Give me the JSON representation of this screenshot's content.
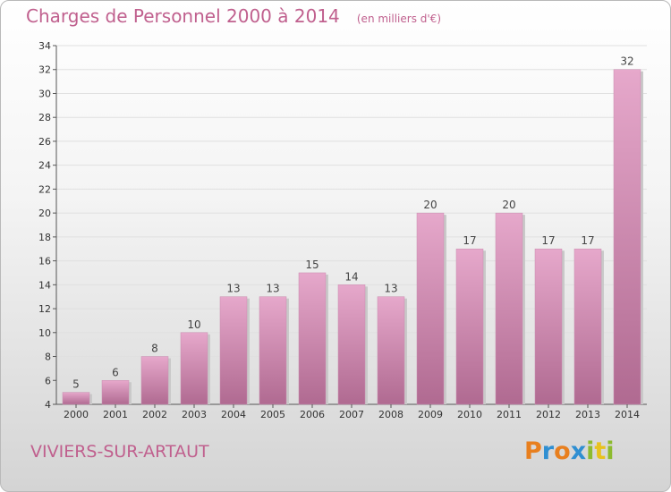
{
  "header": {
    "title": "Charges de Personnel 2000 à 2014",
    "unit": "(en milliers d'€)"
  },
  "footer": {
    "town": "VIVIERS-SUR-ARTAUT",
    "logo_text": "Proxiti",
    "logo_colors": [
      "#e87f1e",
      "#2f8fd2",
      "#e87f1e",
      "#2f8fd2",
      "#8dbb2f",
      "#e8c21e",
      "#8dbb2f"
    ]
  },
  "colors": {
    "bar_top": "#e6a8cb",
    "bar_bottom": "#b06a91",
    "bar_shadow": "#c9c9c9",
    "grid": "#e0e0e0",
    "title": "#c0608e"
  },
  "chart_data": {
    "type": "bar",
    "categories": [
      "2000",
      "2001",
      "2002",
      "2003",
      "2004",
      "2005",
      "2006",
      "2007",
      "2008",
      "2009",
      "2010",
      "2011",
      "2012",
      "2013",
      "2014"
    ],
    "values": [
      5,
      6,
      8,
      10,
      13,
      13,
      15,
      14,
      13,
      20,
      17,
      20,
      17,
      17,
      32
    ],
    "title": "Charges de Personnel 2000 à 2014",
    "ylim": [
      4,
      34
    ],
    "yticks": [
      4,
      6,
      8,
      10,
      12,
      14,
      16,
      18,
      20,
      22,
      24,
      26,
      28,
      30,
      32,
      34
    ],
    "grid": true
  }
}
